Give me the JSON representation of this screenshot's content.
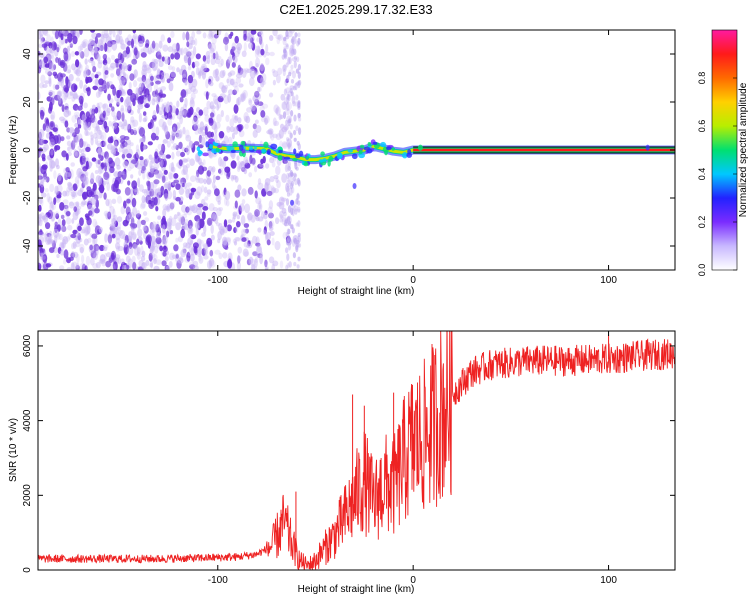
{
  "title": "C2E1.2025.299.17.32.E33",
  "colors": {
    "snr_line": "#ee2222",
    "axes": "#000000",
    "scatter_fill": "#6a2fd8",
    "trace_band": "#ff1a1a",
    "colorbar_stops": [
      "#ffffff",
      "#c8b8ff",
      "#7a2cff",
      "#2222ff",
      "#00c8ff",
      "#00e070",
      "#b8ee00",
      "#ffd000",
      "#ff6a00",
      "#ff1a1a",
      "#ff1aa0"
    ]
  },
  "chart_data": [
    {
      "type": "heatmap",
      "title": "C2E1.2025.299.17.32.E33",
      "xlabel": "Height of straight line (km)",
      "ylabel": "Frequency (Hz)",
      "xlim": [
        -192,
        134
      ],
      "ylim": [
        -50,
        50
      ],
      "x_ticks": [
        -100,
        0,
        100
      ],
      "x_tick_labels": [
        "-100",
        "0",
        "100"
      ],
      "y_ticks": [
        -40,
        -20,
        0,
        20,
        40
      ],
      "y_tick_labels": [
        "-40",
        "-20",
        "0",
        "20",
        "40"
      ],
      "colorbar": {
        "label": "Normalized spectral amplitude",
        "range": [
          0,
          1
        ],
        "ticks": [
          0.0,
          0.2,
          0.4,
          0.6,
          0.8
        ],
        "tick_labels": [
          "0.0",
          "0.2",
          "0.4",
          "0.6",
          "0.8"
        ]
      },
      "trace": {
        "description": "dominant frequency track",
        "x": [
          -105,
          -95,
          -85,
          -75,
          -70,
          -65,
          -60,
          -55,
          -50,
          -45,
          -40,
          -35,
          -30,
          -25,
          -20,
          -15,
          -10,
          -5,
          0,
          5,
          50,
          100,
          134
        ],
        "freq": [
          1.5,
          0.5,
          0.8,
          0.5,
          -1.5,
          -2.5,
          -3.0,
          -4.0,
          -4.0,
          -3.5,
          -2.5,
          -1.0,
          -0.5,
          0.0,
          1.5,
          0.5,
          -0.5,
          -1.0,
          0.0,
          0.0,
          0.0,
          0.0,
          0.0
        ]
      },
      "noise_region_x": [
        -192,
        -60
      ]
    },
    {
      "type": "line",
      "xlabel": "Height of straight line (km)",
      "ylabel": "SNR (10 * v/v)",
      "xlim": [
        -192,
        134
      ],
      "ylim": [
        0,
        6400
      ],
      "x_ticks": [
        -100,
        0,
        100
      ],
      "x_tick_labels": [
        "-100",
        "0",
        "100"
      ],
      "y_ticks": [
        0,
        2000,
        4000,
        6000
      ],
      "y_tick_labels": [
        "0",
        "2000",
        "4000",
        "6000"
      ],
      "series": [
        {
          "name": "SNR",
          "x": [
            -192,
            -170,
            -150,
            -130,
            -110,
            -90,
            -80,
            -72,
            -66,
            -62,
            -58,
            -54,
            -50,
            -45,
            -40,
            -35,
            -30,
            -25,
            -20,
            -15,
            -10,
            -5,
            0,
            5,
            10,
            15,
            20,
            25,
            30,
            35,
            40,
            50,
            60,
            80,
            100,
            120,
            134
          ],
          "values": [
            300,
            300,
            300,
            300,
            320,
            350,
            420,
            650,
            1300,
            700,
            250,
            120,
            250,
            600,
            950,
            1400,
            1900,
            2400,
            1800,
            2300,
            2200,
            2900,
            3400,
            3500,
            3900,
            4300,
            4700,
            5000,
            5300,
            5400,
            5500,
            5550,
            5600,
            5600,
            5650,
            5750,
            5800
          ]
        }
      ],
      "spikes": [
        {
          "x": -60,
          "value": 2100
        },
        {
          "x": -31,
          "value": 4700
        },
        {
          "x": -25,
          "value": 4400
        },
        {
          "x": -10,
          "value": 4750
        },
        {
          "x": 100,
          "value": 6300
        }
      ]
    }
  ]
}
